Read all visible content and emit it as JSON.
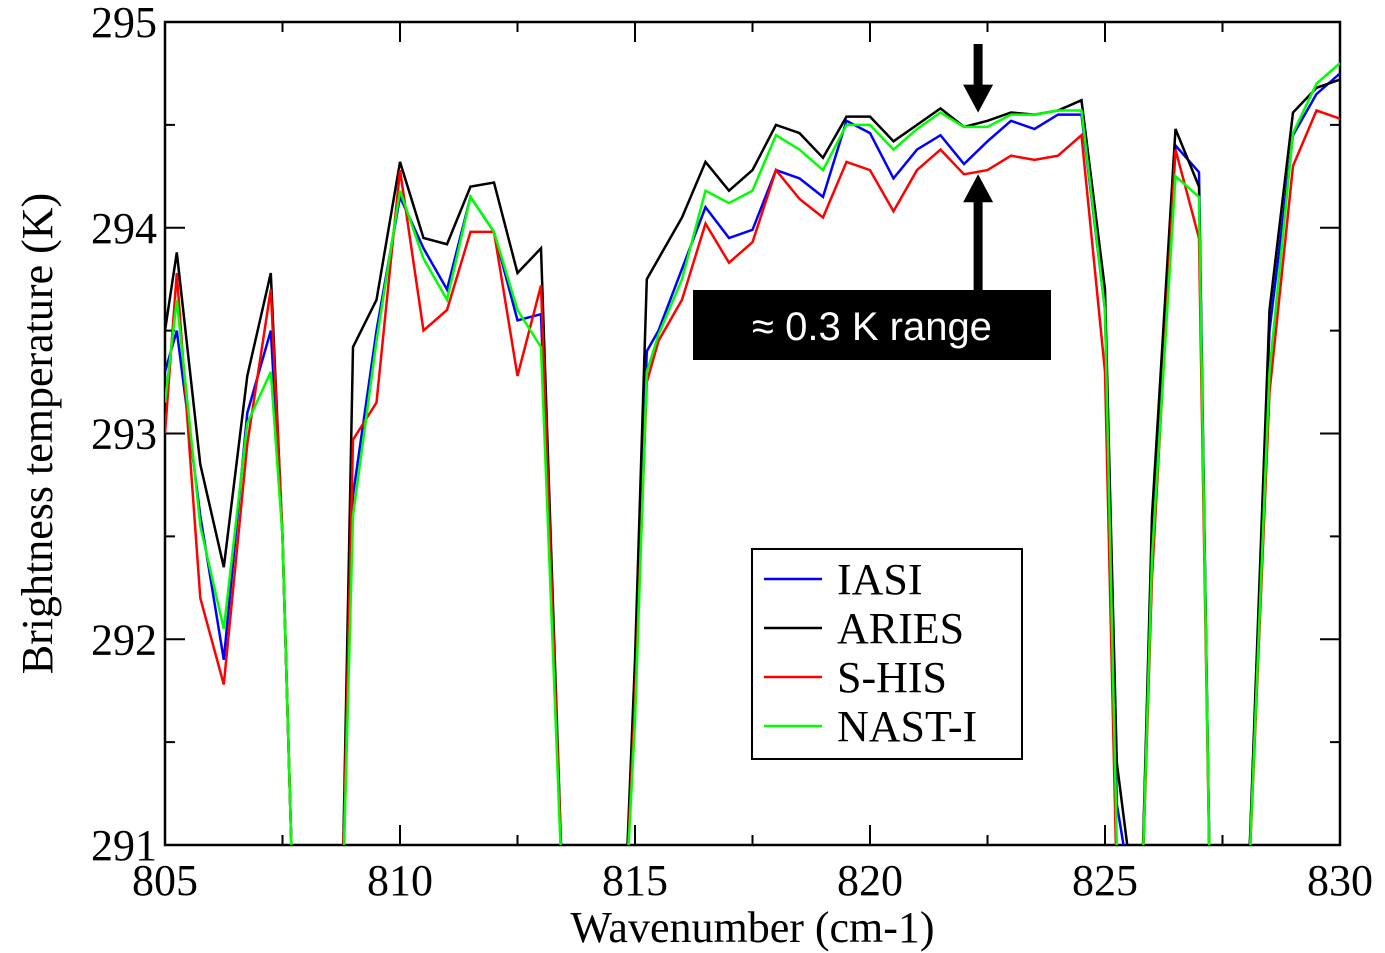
{
  "chart_data": {
    "type": "line",
    "xlabel": "Wavenumber (cm-1)",
    "ylabel": "Brightness temperature (K)",
    "xlim": [
      805,
      830
    ],
    "ylim": [
      291,
      295
    ],
    "xticks": [
      805,
      810,
      815,
      820,
      825,
      830
    ],
    "xtick_labels": [
      "805",
      "810",
      "815",
      "820",
      "825",
      "830"
    ],
    "yticks": [
      291,
      292,
      293,
      294,
      295
    ],
    "ytick_labels": [
      "291",
      "292",
      "293",
      "294",
      "295"
    ],
    "legend_position": "lower-right inside plot",
    "grid": false,
    "annotation": {
      "text": "≈ 0.3 K range",
      "x": 822.3,
      "y_top": 294.55,
      "y_bottom": 294.27
    },
    "series": [
      {
        "name": "IASI",
        "color": "#0000ff",
        "x": [
          805.0,
          805.25,
          805.75,
          806.25,
          806.75,
          807.25,
          807.5,
          807.75,
          808.75,
          809.0,
          809.5,
          810.0,
          810.5,
          811.0,
          811.5,
          812.0,
          812.5,
          813.0,
          813.5,
          814.75,
          815.0,
          815.25,
          815.5,
          816.0,
          816.5,
          817.0,
          817.5,
          818.0,
          818.5,
          819.0,
          819.5,
          820.0,
          820.5,
          821.0,
          821.5,
          822.0,
          822.5,
          823.0,
          823.5,
          824.0,
          824.5,
          825.0,
          825.25,
          825.75,
          826.0,
          826.5,
          827.0,
          827.25,
          828.0,
          828.5,
          829.0,
          829.5,
          830.0
        ],
        "y": [
          293.3,
          293.5,
          292.6,
          291.9,
          293.1,
          293.5,
          292.5,
          290.5,
          290.5,
          292.7,
          293.5,
          294.15,
          293.9,
          293.7,
          294.15,
          293.98,
          293.55,
          293.58,
          290.5,
          290.5,
          291.8,
          293.4,
          293.5,
          293.8,
          294.1,
          293.95,
          293.99,
          294.28,
          294.24,
          294.15,
          294.52,
          294.46,
          294.24,
          294.38,
          294.45,
          294.31,
          294.42,
          294.52,
          294.48,
          294.55,
          294.55,
          293.6,
          291.2,
          290.5,
          292.5,
          294.4,
          294.27,
          290.5,
          290.5,
          293.5,
          294.45,
          294.65,
          294.75
        ]
      },
      {
        "name": "ARIES",
        "color": "#000000",
        "x": [
          805.0,
          805.25,
          805.75,
          806.25,
          806.75,
          807.25,
          807.5,
          807.75,
          808.75,
          809.0,
          809.5,
          810.0,
          810.5,
          811.0,
          811.5,
          812.0,
          812.5,
          813.0,
          813.5,
          814.75,
          815.0,
          815.25,
          815.5,
          816.0,
          816.5,
          817.0,
          817.5,
          818.0,
          818.5,
          819.0,
          819.5,
          820.0,
          820.5,
          821.0,
          821.5,
          822.0,
          822.5,
          823.0,
          823.5,
          824.0,
          824.5,
          825.0,
          825.25,
          825.75,
          826.0,
          826.5,
          827.0,
          827.25,
          828.0,
          828.5,
          829.0,
          829.5,
          830.0
        ],
        "y": [
          293.5,
          293.88,
          292.85,
          292.35,
          293.28,
          293.78,
          292.5,
          290.5,
          290.5,
          293.42,
          293.65,
          294.32,
          293.95,
          293.92,
          294.2,
          294.22,
          293.78,
          293.9,
          290.5,
          290.5,
          291.9,
          293.75,
          293.85,
          294.05,
          294.32,
          294.18,
          294.28,
          294.5,
          294.46,
          294.34,
          294.54,
          294.54,
          294.42,
          294.5,
          294.58,
          294.49,
          294.52,
          294.56,
          294.55,
          294.57,
          294.62,
          293.7,
          291.4,
          290.5,
          292.6,
          294.48,
          294.2,
          290.5,
          290.5,
          293.6,
          294.56,
          294.68,
          294.72
        ]
      },
      {
        "name": "S-HIS",
        "color": "#ff0000",
        "x": [
          805.0,
          805.25,
          805.75,
          806.25,
          806.75,
          807.25,
          807.5,
          807.75,
          808.75,
          809.0,
          809.5,
          810.0,
          810.5,
          811.0,
          811.5,
          812.0,
          812.5,
          813.0,
          813.5,
          814.75,
          815.0,
          815.25,
          815.5,
          816.0,
          816.5,
          817.0,
          817.5,
          818.0,
          818.5,
          819.0,
          819.5,
          820.0,
          820.5,
          821.0,
          821.5,
          822.0,
          822.5,
          823.0,
          823.5,
          824.0,
          824.5,
          825.0,
          825.25,
          825.75,
          826.0,
          826.5,
          827.0,
          827.25,
          828.0,
          828.5,
          829.0,
          829.5,
          830.0
        ],
        "y": [
          293.0,
          293.78,
          292.2,
          291.78,
          292.95,
          293.7,
          292.5,
          290.5,
          290.5,
          292.97,
          293.15,
          294.28,
          293.5,
          293.6,
          293.98,
          293.98,
          293.28,
          293.72,
          290.5,
          290.5,
          291.7,
          293.25,
          293.45,
          293.65,
          294.02,
          293.83,
          293.93,
          294.28,
          294.14,
          294.05,
          294.32,
          294.28,
          294.08,
          294.28,
          294.38,
          294.26,
          294.28,
          294.35,
          294.33,
          294.35,
          294.45,
          293.3,
          290.8,
          290.5,
          292.3,
          294.38,
          293.95,
          290.5,
          290.5,
          293.2,
          294.3,
          294.57,
          294.53
        ]
      },
      {
        "name": "NAST-I",
        "color": "#00ff00",
        "x": [
          805.0,
          805.25,
          805.75,
          806.25,
          806.75,
          807.25,
          807.5,
          807.75,
          808.75,
          809.0,
          809.5,
          810.0,
          810.5,
          811.0,
          811.5,
          812.0,
          812.5,
          813.0,
          813.5,
          814.75,
          815.0,
          815.25,
          815.5,
          816.0,
          816.5,
          817.0,
          817.5,
          818.0,
          818.5,
          819.0,
          819.5,
          820.0,
          820.5,
          821.0,
          821.5,
          822.0,
          822.5,
          823.0,
          823.5,
          824.0,
          824.5,
          825.0,
          825.25,
          825.75,
          826.0,
          826.5,
          827.0,
          827.25,
          828.0,
          828.5,
          829.0,
          829.5,
          830.0
        ],
        "y": [
          293.15,
          293.65,
          292.55,
          292.05,
          293.05,
          293.3,
          292.5,
          290.5,
          290.5,
          292.6,
          293.45,
          294.18,
          293.85,
          293.65,
          294.15,
          293.98,
          293.6,
          293.42,
          290.5,
          290.5,
          291.6,
          293.3,
          293.48,
          293.75,
          294.18,
          294.12,
          294.18,
          294.45,
          294.38,
          294.28,
          294.5,
          294.5,
          294.38,
          294.48,
          294.56,
          294.49,
          294.49,
          294.55,
          294.55,
          294.57,
          294.57,
          293.6,
          291.0,
          290.5,
          292.4,
          294.25,
          294.15,
          290.5,
          290.5,
          293.3,
          294.46,
          294.7,
          294.8
        ]
      }
    ]
  }
}
